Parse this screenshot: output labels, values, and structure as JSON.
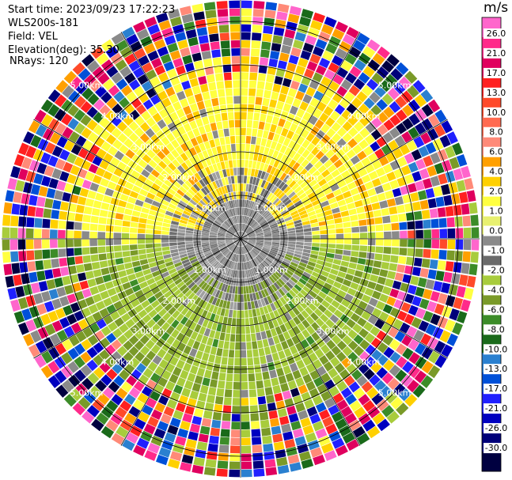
{
  "header": {
    "start_time": "Start time: 2023/09/23 17:22:23",
    "instrument": "WLS200s-181",
    "field": "Field: VEL",
    "elevation": "Elevation(deg): 35.30",
    "nrays": "NRays: 120"
  },
  "colorbar": {
    "unit": "m/s",
    "ticks": [
      "26.0",
      "21.0",
      "17.0",
      "13.0",
      "10.0",
      "8.0",
      "6.0",
      "4.0",
      "2.0",
      "1.0",
      "0.0",
      "-1.0",
      "-2.0",
      "-4.0",
      "-6.0",
      "-8.0",
      "-10.0",
      "-13.0",
      "-17.0",
      "-21.0",
      "-26.0",
      "-30.0"
    ],
    "colors": [
      "#ff66cc",
      "#ff2a8a",
      "#e0005e",
      "#ff2020",
      "#ff4a2a",
      "#ff6a50",
      "#ff8a78",
      "#ffa000",
      "#ffd000",
      "#ffff40",
      "#e8f070",
      "#8a8a8a",
      "#6a6a6a",
      "#a8cc3c",
      "#7a9a28",
      "#3c8c28",
      "#1a6a1a",
      "#2a80d0",
      "#0050d8",
      "#2020ff",
      "#0000c0",
      "#00007a",
      "#000040"
    ]
  },
  "chart_data": {
    "type": "heatmap",
    "projection": "polar (PPI)",
    "field": "VEL",
    "units": "m/s",
    "nrays": 120,
    "elevation_deg": 35.3,
    "range_ring_labels": [
      "1.00km",
      "2.00km",
      "3.00km",
      "4.00km",
      "5.00km"
    ],
    "vmin": -30.0,
    "vmax": 26.0,
    "pattern": "Inner ~2 km mixed gray (near 0 m/s); north sector yellow/gold (+1 to +4 m/s); south sector light/olive green (-1 to -4 m/s); outer rings beyond ~4 km dominated by noisy multicolored values"
  }
}
